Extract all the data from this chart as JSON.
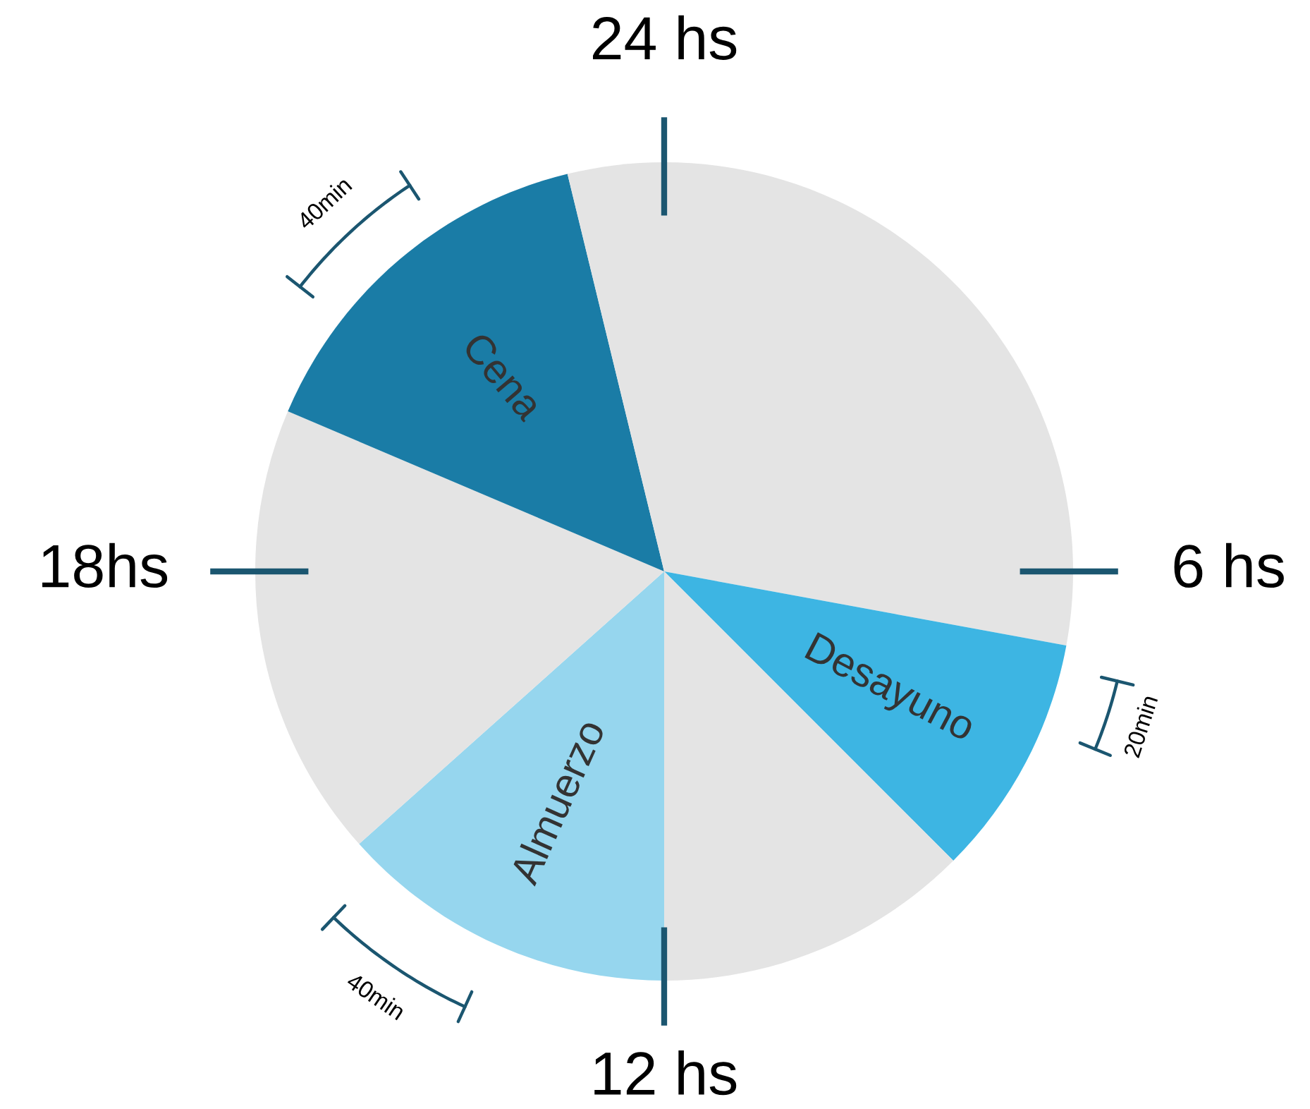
{
  "chart_data": {
    "type": "pie",
    "categories": [
      null,
      "Desayuno",
      null,
      "Almuerzo",
      null,
      "Cena",
      null
    ],
    "values": [
      27.9,
      9.6,
      12.5,
      13.4,
      18.0,
      14.8,
      3.8
    ],
    "colors": [
      "#e4e4e4",
      "#3db5e3",
      "#e4e4e4",
      "#96d6ee",
      "#e4e4e4",
      "#1a7ca6",
      "#e4e4e4"
    ],
    "annotations": [
      "24 hs",
      "6 hs",
      "12 hs",
      "18hs",
      "20min",
      "40min",
      "40min"
    ]
  }
}
